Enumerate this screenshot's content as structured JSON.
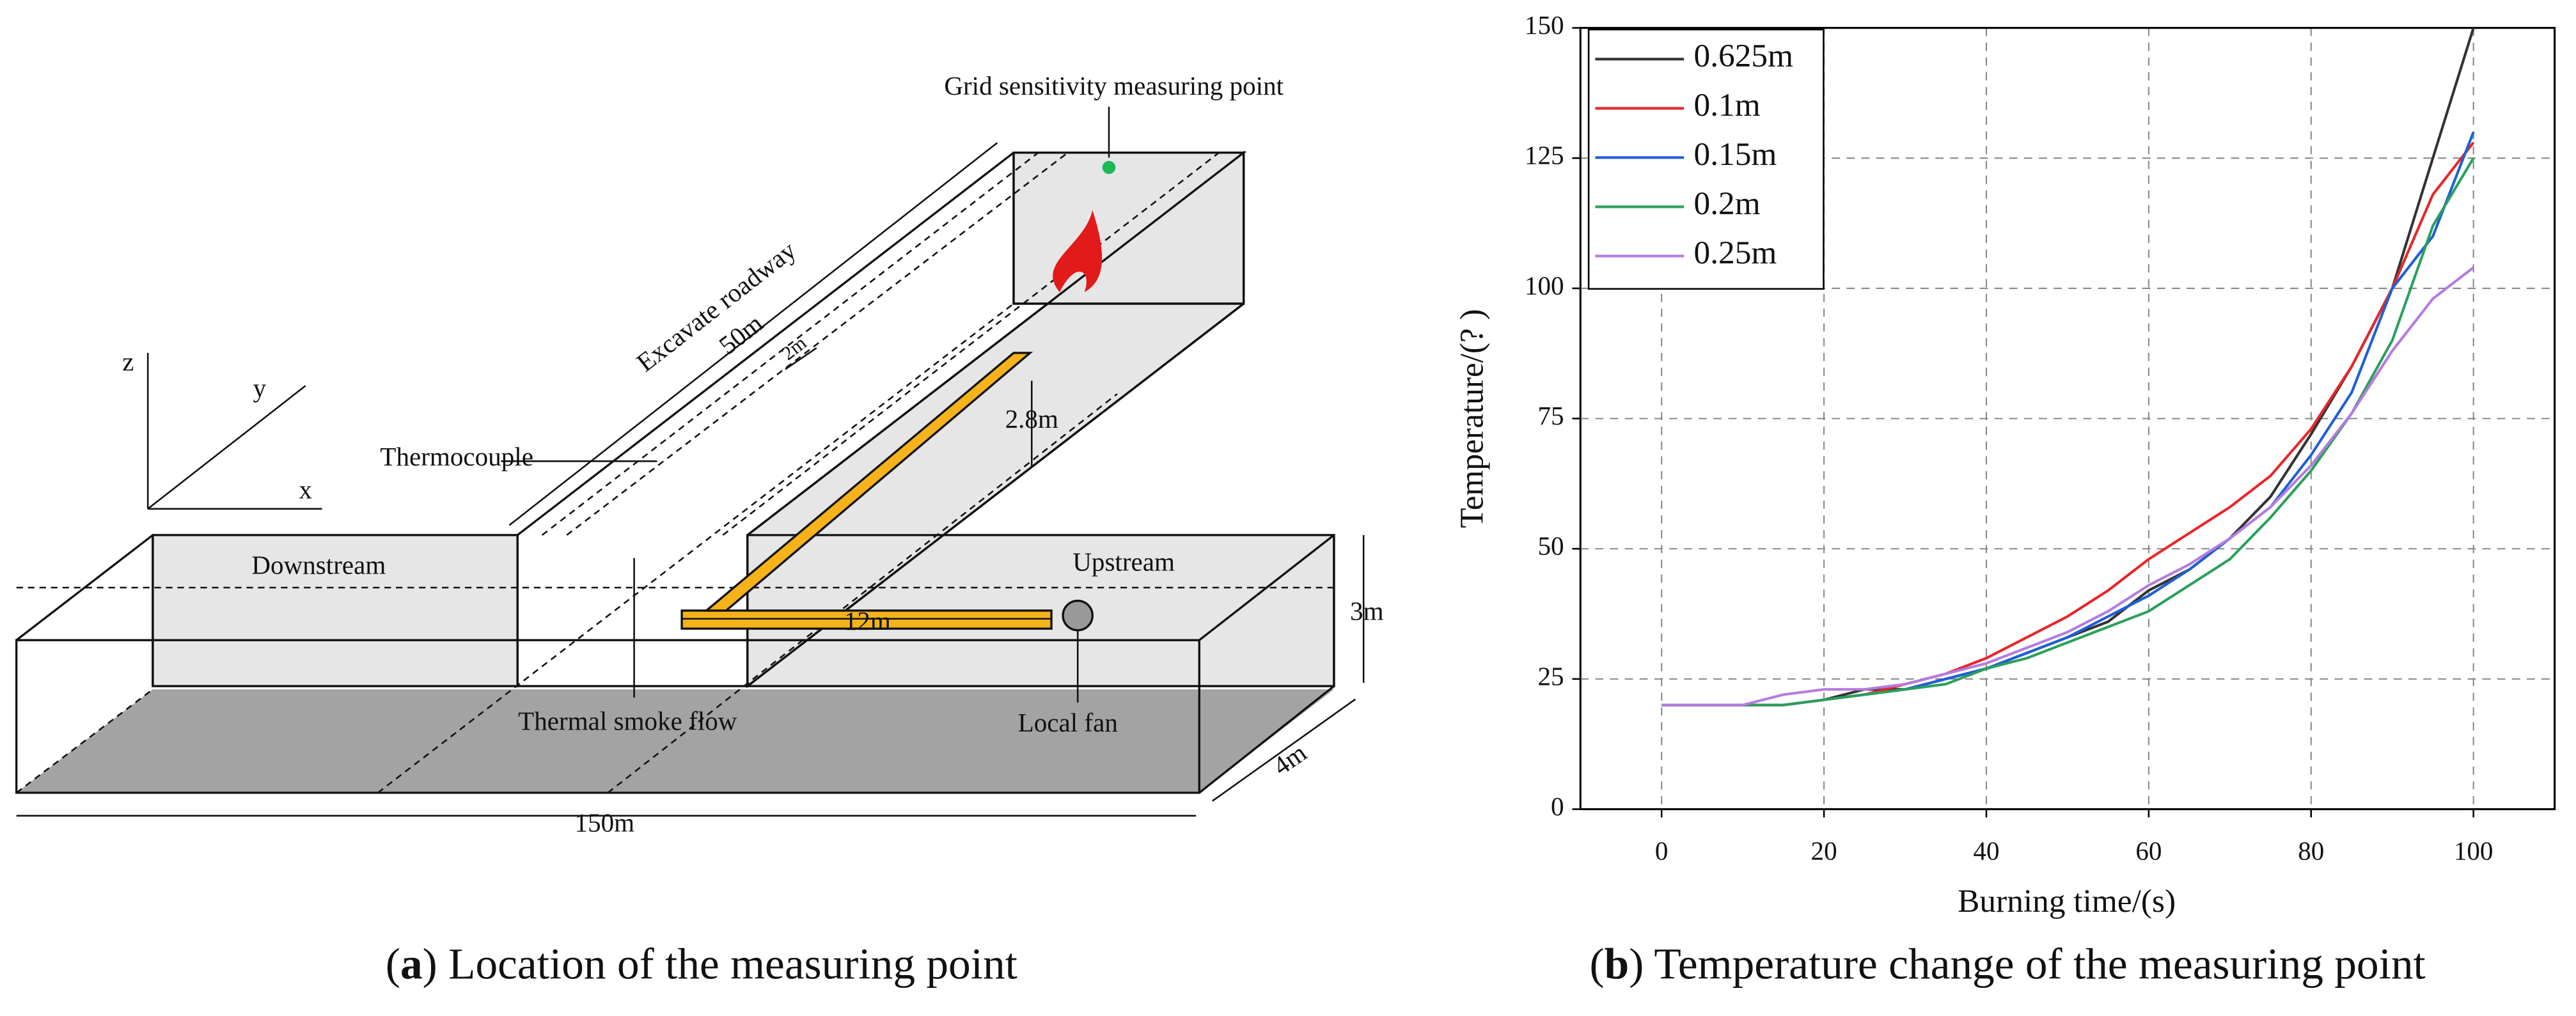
{
  "diagram": {
    "labels": {
      "measuring_point": "Grid sensitivity measuring point",
      "roadway": "Excavate roadway",
      "roadway_length": "50m",
      "spacing": "2m",
      "height_duct": "2.8m",
      "thermocouple": "Thermocouple",
      "axis_z": "z",
      "axis_y": "y",
      "axis_x": "x",
      "downstream": "Downstream",
      "upstream": "Upstream",
      "height": "3m",
      "duct_length": "12m",
      "smoke": "Thermal smoke flow",
      "fan": "Local fan",
      "width": "4m",
      "length": "150m"
    },
    "caption": [
      "(",
      "a",
      ") Location of the measuring point"
    ]
  },
  "chart_data": {
    "type": "line",
    "xlabel": "Burning time/(s)",
    "ylabel": "Temperature/(?  )",
    "caption": [
      "(",
      "b",
      ") Temperature change of the measuring point"
    ],
    "x": [
      0,
      5,
      10,
      15,
      20,
      25,
      30,
      35,
      40,
      45,
      50,
      55,
      60,
      65,
      70,
      75,
      80,
      85,
      90,
      95,
      100
    ],
    "series": [
      {
        "name": "0.625m",
        "color": "#333333",
        "values": [
          20,
          20,
          20,
          20,
          21,
          23,
          23,
          25,
          27,
          30,
          33,
          36,
          42,
          46,
          52,
          60,
          72,
          85,
          100,
          125,
          150
        ]
      },
      {
        "name": "0.1m",
        "color": "#e8262a",
        "values": [
          20,
          20,
          20,
          20,
          21,
          22,
          24,
          26,
          29,
          33,
          37,
          42,
          48,
          53,
          58,
          64,
          73,
          85,
          100,
          118,
          128
        ]
      },
      {
        "name": "0.15m",
        "color": "#1f5fd6",
        "values": [
          20,
          20,
          20,
          20,
          21,
          22,
          23,
          25,
          27,
          30,
          33,
          37,
          41,
          46,
          52,
          58,
          68,
          80,
          100,
          110,
          130
        ]
      },
      {
        "name": "0.2m",
        "color": "#2aa05a",
        "values": [
          20,
          20,
          20,
          20,
          21,
          22,
          23,
          24,
          27,
          29,
          32,
          35,
          38,
          43,
          48,
          56,
          65,
          76,
          90,
          112,
          125
        ]
      },
      {
        "name": "0.25m",
        "color": "#b57be0",
        "values": [
          20,
          20,
          20,
          22,
          23,
          23,
          24,
          26,
          28,
          31,
          34,
          38,
          43,
          47,
          52,
          58,
          66,
          76,
          88,
          98,
          104
        ]
      }
    ],
    "xlim": [
      -10,
      110
    ],
    "ylim": [
      0,
      150
    ],
    "xticks": [
      0,
      20,
      40,
      60,
      80,
      100
    ],
    "yticks": [
      0,
      25,
      50,
      75,
      100,
      125,
      150
    ],
    "grid": true,
    "legend": "upper left"
  }
}
